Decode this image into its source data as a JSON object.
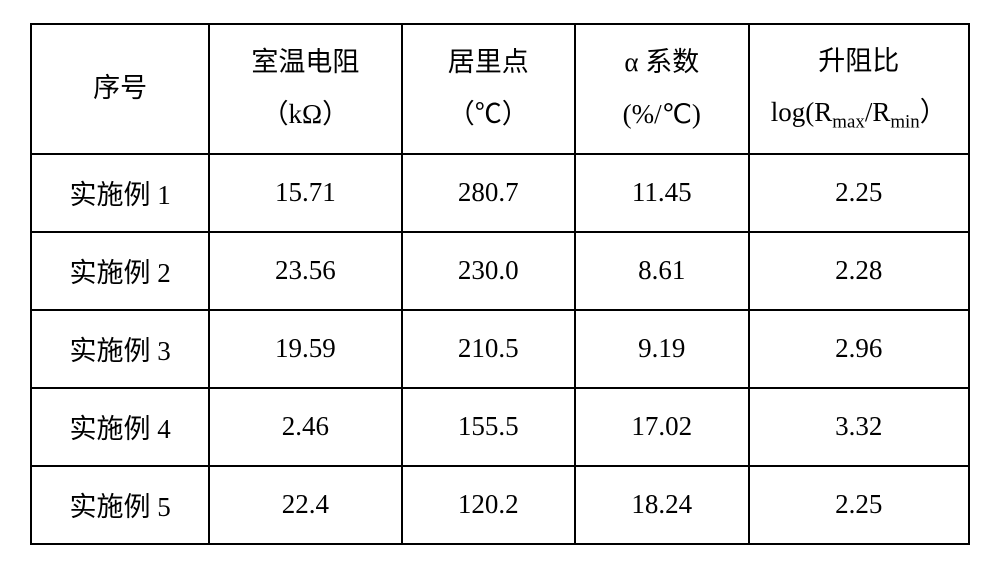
{
  "table": {
    "type": "table",
    "background_color": "#ffffff",
    "border_color": "#000000",
    "border_width": 2,
    "font_family": "SimSun",
    "header_fontsize": 27,
    "body_fontsize": 27,
    "columns": [
      {
        "key": "seq",
        "header_line1": "序号",
        "header_line2": "",
        "width_pct": 19,
        "align": "center"
      },
      {
        "key": "room_temp_resistance",
        "header_line1": "室温电阻",
        "header_line2": "（kΩ）",
        "width_pct": 20.5,
        "align": "center"
      },
      {
        "key": "curie_point",
        "header_line1": "居里点",
        "header_line2": "（℃）",
        "width_pct": 18.5,
        "align": "center"
      },
      {
        "key": "alpha_coef",
        "header_line1": "α 系数",
        "header_line2": "(%/℃)",
        "width_pct": 18.5,
        "align": "center"
      },
      {
        "key": "resistance_ratio",
        "header_line1": "升阻比",
        "header_line2_prefix": "log(R",
        "header_line2_sub1": "max",
        "header_line2_mid": "/R",
        "header_line2_sub2": "min",
        "header_line2_suffix": "）",
        "width_pct": 23.5,
        "align": "center"
      }
    ],
    "rows": [
      {
        "seq": "实施例 1",
        "room_temp_resistance": "15.71",
        "curie_point": "280.7",
        "alpha_coef": "11.45",
        "resistance_ratio": "2.25"
      },
      {
        "seq": "实施例 2",
        "room_temp_resistance": "23.56",
        "curie_point": "230.0",
        "alpha_coef": "8.61",
        "resistance_ratio": "2.28"
      },
      {
        "seq": "实施例 3",
        "room_temp_resistance": "19.59",
        "curie_point": "210.5",
        "alpha_coef": "9.19",
        "resistance_ratio": "2.96"
      },
      {
        "seq": "实施例 4",
        "room_temp_resistance": "2.46",
        "curie_point": "155.5",
        "alpha_coef": "17.02",
        "resistance_ratio": "3.32"
      },
      {
        "seq": "实施例 5",
        "room_temp_resistance": "22.4",
        "curie_point": "120.2",
        "alpha_coef": "18.24",
        "resistance_ratio": "2.25"
      }
    ]
  }
}
